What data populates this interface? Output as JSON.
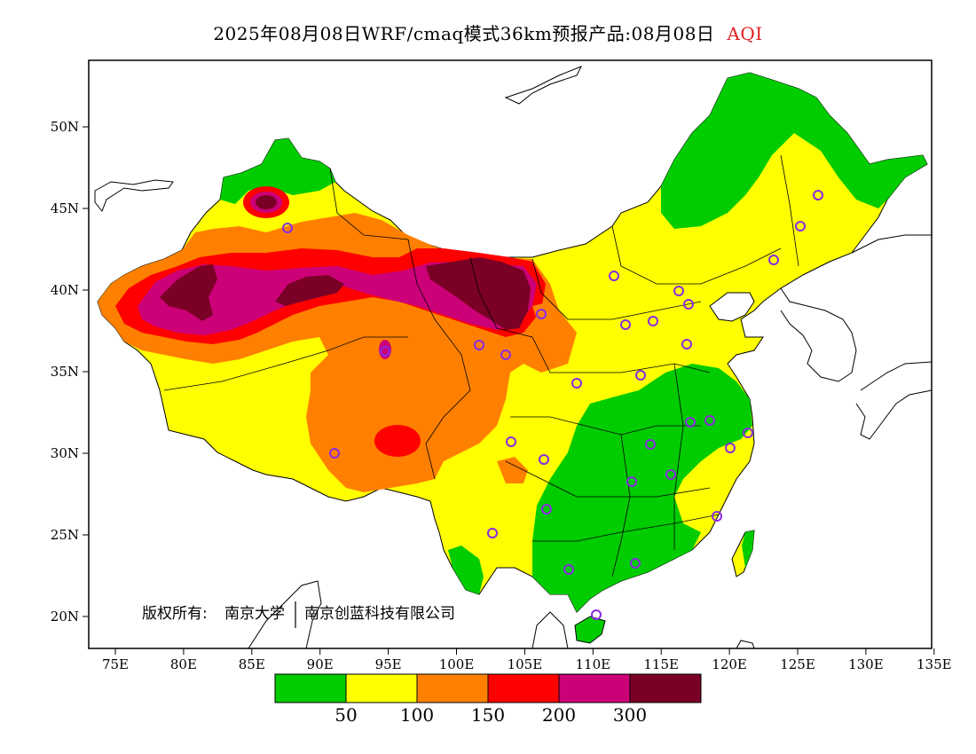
{
  "title": {
    "text": "2025年08月08日WRF/cmaq模式36km预报产品:08月08日",
    "aqi_label": "AQI",
    "aqi_color": "#e02020"
  },
  "map": {
    "lat_ticks": [
      "50N",
      "45N",
      "40N",
      "35N",
      "30N",
      "25N",
      "20N"
    ],
    "lon_ticks": [
      "75E",
      "80E",
      "85E",
      "90E",
      "95E",
      "100E",
      "105E",
      "110E",
      "115E",
      "120E",
      "125E",
      "130E",
      "135E"
    ],
    "copyright_prefix": "版权所有:",
    "copyright_org1": "南京大学",
    "copyright_org2": "南京创蓝科技有限公司"
  },
  "legend": {
    "colors": [
      "#00cc00",
      "#ffff00",
      "#ff8000",
      "#ff0000",
      "#cc0077",
      "#7a0025"
    ],
    "labels": [
      "50",
      "100",
      "150",
      "200",
      "300"
    ]
  },
  "colors": {
    "good": "#00cc00",
    "moderate": "#ffff00",
    "usg": "#ff8000",
    "unhealthy": "#ff0000",
    "very_unhealthy": "#cc0077",
    "hazardous": "#7a0025",
    "station_marker": "#8a2be2"
  }
}
